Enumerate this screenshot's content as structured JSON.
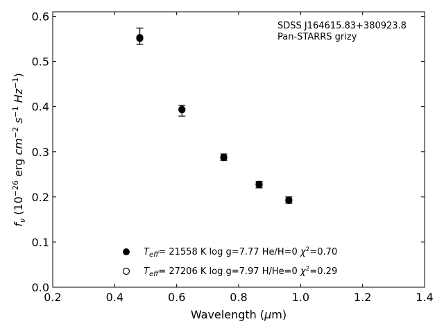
{
  "chart_data": {
    "type": "scatter",
    "xlabel_prefix": "Wavelength (",
    "xlabel_mu": "μ",
    "xlabel_suffix": "m)",
    "ylabel": "f_ν (10^-26 erg cm^-2 s^-1 Hz^-1)",
    "xlim": [
      0.2,
      1.4
    ],
    "ylim": [
      0.0,
      0.61
    ],
    "x_ticks": [
      0.2,
      0.4,
      0.6,
      0.8,
      1.0,
      1.2,
      1.4
    ],
    "x_tick_labels": [
      "0.2",
      "0.4",
      "0.6",
      "0.8",
      "1.0",
      "1.2",
      "1.4"
    ],
    "y_ticks": [
      0.0,
      0.1,
      0.2,
      0.3,
      0.4,
      0.5,
      0.6
    ],
    "y_tick_labels": [
      "0.0",
      "0.1",
      "0.2",
      "0.3",
      "0.4",
      "0.5",
      "0.6"
    ],
    "grid": false,
    "annotation": [
      "SDSS J164615.83+380923.8",
      "Pan-STARRS grizy"
    ],
    "observed": {
      "x": [
        0.481,
        0.617,
        0.752,
        0.866,
        0.962
      ],
      "y": [
        0.556,
        0.391,
        0.288,
        0.227,
        0.193
      ],
      "err": [
        0.018,
        0.012,
        0.007,
        0.007,
        0.007
      ]
    },
    "series": [
      {
        "marker": "filled",
        "x": [
          0.481,
          0.617,
          0.752,
          0.866,
          0.962
        ],
        "y": [
          0.551,
          0.394,
          0.288,
          0.228,
          0.192
        ],
        "teff": "21558 K",
        "logg_label": "log g=7.77",
        "comp": "He/H=0",
        "chi2": "=0.70"
      },
      {
        "marker": "open",
        "x": [
          0.481,
          0.617,
          0.752,
          0.866,
          0.962
        ],
        "y": [
          0.553,
          0.393,
          0.287,
          0.227,
          0.193
        ],
        "teff": "27206 K",
        "logg_label": "log g=7.97",
        "comp": "H/He=0",
        "chi2": "=0.29"
      }
    ],
    "legend_placement": "lower-center",
    "colors": {
      "marker": "#000000",
      "axis": "#000000"
    }
  }
}
